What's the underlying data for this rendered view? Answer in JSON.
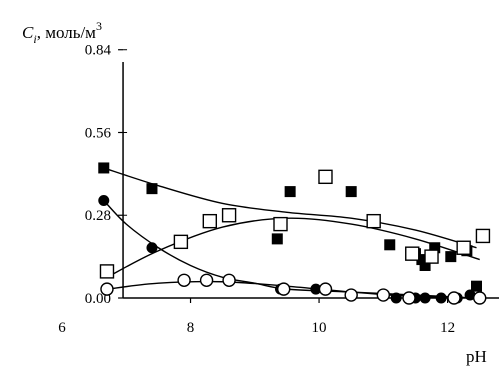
{
  "chart_data": {
    "type": "scatter",
    "title": "",
    "xlabel": "pH",
    "ylabel": {
      "main": "C",
      "sub": "i",
      "rest": ", моль/м",
      "sup": "3"
    },
    "xlim": [
      6,
      12.8
    ],
    "ylim": [
      0,
      0.9
    ],
    "x_ticks": [
      "6",
      "8",
      "10",
      "12"
    ],
    "y_ticks": [
      "0.00",
      "0.28",
      "0.56",
      "0.84"
    ],
    "grid": false,
    "legend": "none",
    "series": [
      {
        "marker": "filled-square",
        "points": [
          [
            6.65,
            0.44
          ],
          [
            7.4,
            0.37
          ],
          [
            9.35,
            0.2
          ],
          [
            9.55,
            0.36
          ],
          [
            10.5,
            0.36
          ],
          [
            11.1,
            0.18
          ],
          [
            11.5,
            0.15
          ],
          [
            11.6,
            0.13
          ],
          [
            11.65,
            0.11
          ],
          [
            11.8,
            0.17
          ],
          [
            12.05,
            0.14
          ],
          [
            12.3,
            0.16
          ],
          [
            12.45,
            0.04
          ]
        ],
        "trend": [
          [
            6.65,
            0.44
          ],
          [
            7.5,
            0.38
          ],
          [
            8.5,
            0.32
          ],
          [
            9.5,
            0.29
          ],
          [
            10.5,
            0.27
          ],
          [
            11.5,
            0.23
          ],
          [
            12.45,
            0.17
          ]
        ]
      },
      {
        "marker": "open-square",
        "points": [
          [
            6.7,
            0.09
          ],
          [
            7.85,
            0.19
          ],
          [
            8.3,
            0.26
          ],
          [
            8.6,
            0.28
          ],
          [
            9.4,
            0.25
          ],
          [
            10.1,
            0.41
          ],
          [
            10.85,
            0.26
          ],
          [
            11.45,
            0.15
          ],
          [
            11.75,
            0.14
          ],
          [
            12.25,
            0.17
          ],
          [
            12.55,
            0.21
          ]
        ],
        "trend": [
          [
            6.7,
            0.07
          ],
          [
            7.5,
            0.16
          ],
          [
            8.5,
            0.24
          ],
          [
            9.5,
            0.27
          ],
          [
            10.5,
            0.25
          ],
          [
            11.5,
            0.2
          ],
          [
            12.5,
            0.13
          ]
        ]
      },
      {
        "marker": "filled-circle",
        "points": [
          [
            6.65,
            0.33
          ],
          [
            7.4,
            0.17
          ],
          [
            9.4,
            0.03
          ],
          [
            9.95,
            0.03
          ],
          [
            10.5,
            0.01
          ],
          [
            11.2,
            0.0
          ],
          [
            11.5,
            0.0
          ],
          [
            11.65,
            0.0
          ],
          [
            11.9,
            0.0
          ],
          [
            12.15,
            0.0
          ],
          [
            12.35,
            0.01
          ]
        ],
        "trend": [
          [
            6.65,
            0.33
          ],
          [
            7.0,
            0.25
          ],
          [
            7.5,
            0.17
          ],
          [
            8.0,
            0.11
          ],
          [
            8.5,
            0.07
          ],
          [
            9.0,
            0.05
          ],
          [
            9.5,
            0.03
          ],
          [
            10.5,
            0.02
          ],
          [
            11.5,
            0.01
          ],
          [
            12.4,
            0.0
          ]
        ]
      },
      {
        "marker": "open-circle",
        "points": [
          [
            6.7,
            0.03
          ],
          [
            7.9,
            0.06
          ],
          [
            8.25,
            0.06
          ],
          [
            8.6,
            0.06
          ],
          [
            9.45,
            0.03
          ],
          [
            10.1,
            0.03
          ],
          [
            10.5,
            0.01
          ],
          [
            11.0,
            0.01
          ],
          [
            11.4,
            0.0
          ],
          [
            12.1,
            0.0
          ],
          [
            12.5,
            0.0
          ]
        ],
        "trend": [
          [
            6.7,
            0.03
          ],
          [
            7.5,
            0.05
          ],
          [
            8.5,
            0.055
          ],
          [
            9.5,
            0.04
          ],
          [
            10.5,
            0.02
          ],
          [
            11.5,
            0.005
          ],
          [
            12.5,
            0.0
          ]
        ]
      }
    ]
  }
}
